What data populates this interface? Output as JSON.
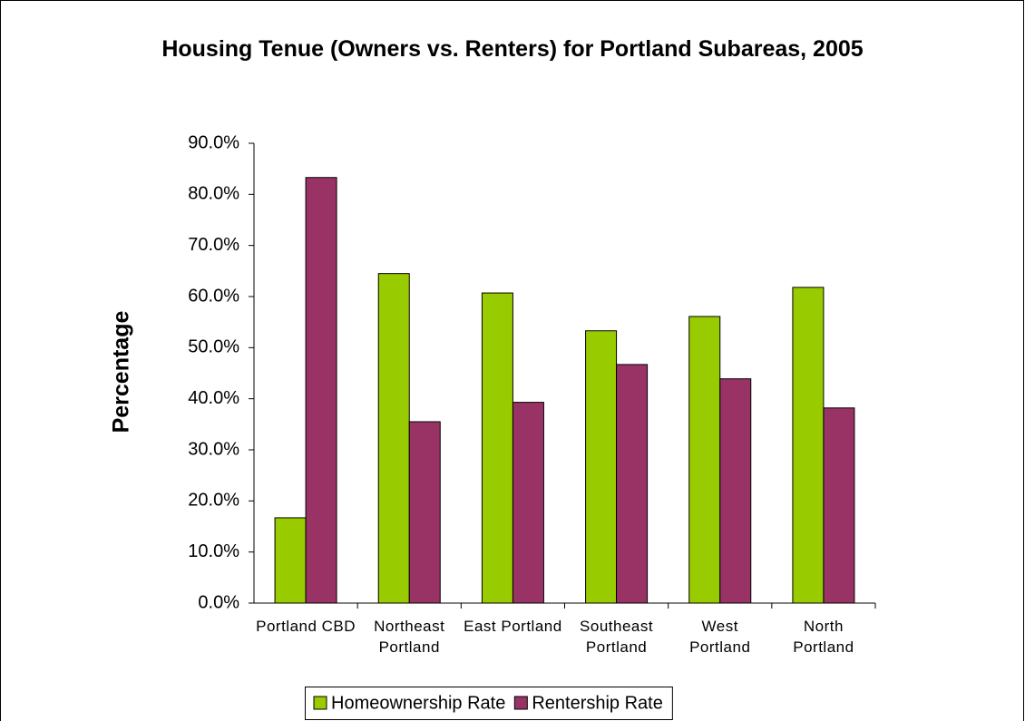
{
  "chart_data": {
    "type": "bar",
    "title": "Housing Tenue (Owners vs. Renters) for Portland Subareas, 2005",
    "y_label": "Percentage",
    "categories": [
      "Portland CBD",
      "Northeast Portland",
      "East Portland",
      "Southeast Portland",
      "West Portland",
      "North Portland"
    ],
    "series": [
      {
        "name": "Homeownership Rate",
        "color": "#99cc00",
        "values": [
          16.7,
          64.5,
          60.7,
          53.3,
          56.1,
          61.8
        ]
      },
      {
        "name": "Rentership Rate",
        "color": "#993366",
        "values": [
          83.3,
          35.5,
          39.3,
          46.7,
          43.9,
          38.2
        ]
      }
    ],
    "ylim": [
      0,
      90
    ],
    "yticks": [
      {
        "value": 0,
        "label": "0.0%"
      },
      {
        "value": 10,
        "label": "10.0%"
      },
      {
        "value": 20,
        "label": "20.0%"
      },
      {
        "value": 30,
        "label": "30.0%"
      },
      {
        "value": 40,
        "label": "40.0%"
      },
      {
        "value": 50,
        "label": "50.0%"
      },
      {
        "value": 60,
        "label": "60.0%"
      },
      {
        "value": 70,
        "label": "70.0%"
      },
      {
        "value": 80,
        "label": "80.0%"
      },
      {
        "value": 90,
        "label": "90.0%"
      }
    ],
    "grid": false,
    "legend": "bottom"
  }
}
